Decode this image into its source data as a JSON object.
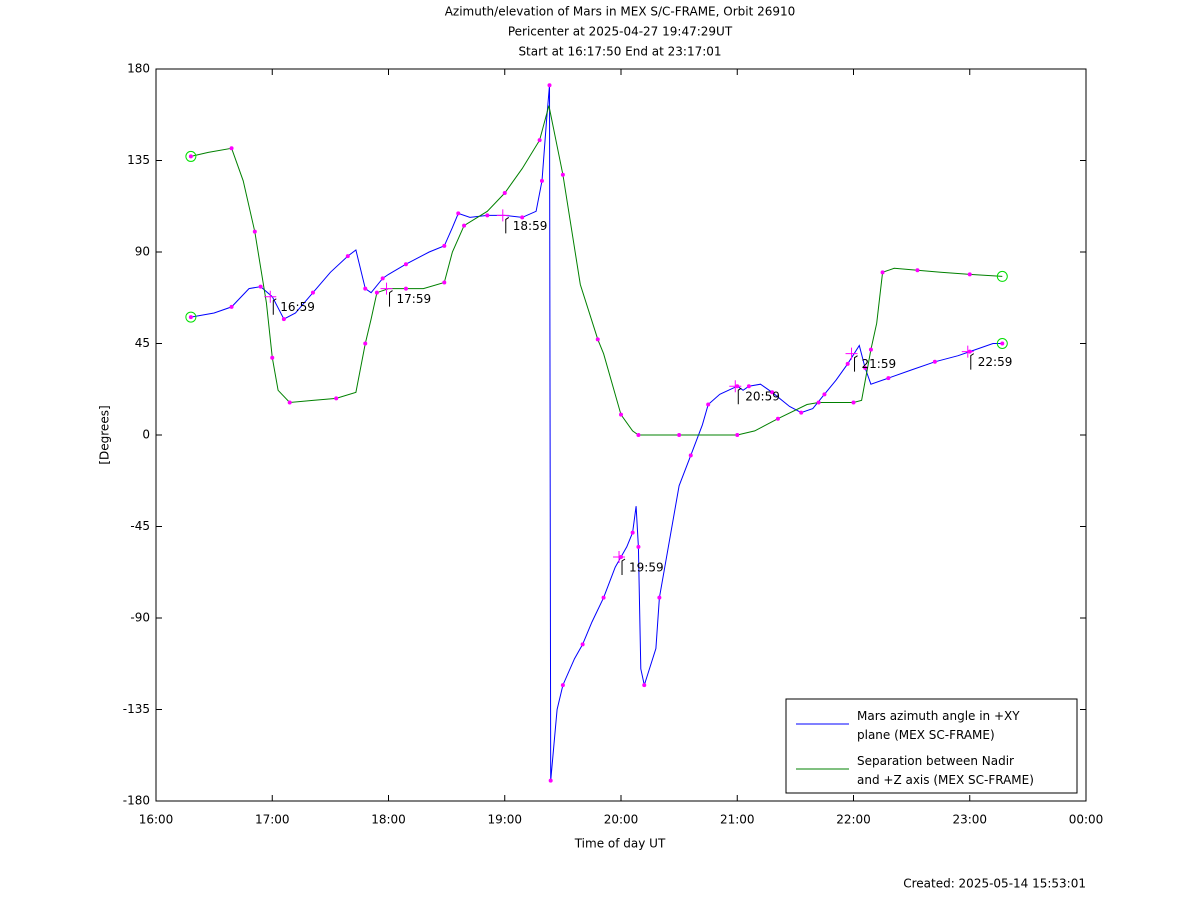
{
  "chart_data": {
    "type": "line",
    "title": [
      "Azimuth/elevation of Mars in MEX S/C-FRAME,  Orbit 26910",
      "Pericenter at 2025-04-27 19:47:29UT",
      "Start at 16:17:50 End at 23:17:01"
    ],
    "xlabel": "Time of day UT",
    "ylabel": "[Degrees]",
    "footer": "Created: 2025-05-14 15:53:01",
    "xlim": [
      16,
      24
    ],
    "xticks": [
      {
        "value": 16,
        "label": "16:00"
      },
      {
        "value": 17,
        "label": "17:00"
      },
      {
        "value": 18,
        "label": "18:00"
      },
      {
        "value": 19,
        "label": "19:00"
      },
      {
        "value": 20,
        "label": "20:00"
      },
      {
        "value": 21,
        "label": "21:00"
      },
      {
        "value": 22,
        "label": "22:00"
      },
      {
        "value": 23,
        "label": "23:00"
      },
      {
        "value": 24,
        "label": "00:00"
      }
    ],
    "ylim": [
      -180,
      180
    ],
    "yticks": [
      180,
      135,
      90,
      45,
      0,
      -45,
      -90,
      -135,
      -180
    ],
    "legend": "lower right",
    "marker_color": "#ff00ff",
    "series": [
      {
        "name": "Mars azimuth angle in +XY\nplane (MEX SC-FRAME)",
        "color": "#0000ff",
        "x": [
          16.3,
          16.5,
          16.65,
          16.8,
          16.9,
          17.0,
          17.1,
          17.2,
          17.35,
          17.5,
          17.65,
          17.72,
          17.8,
          17.85,
          17.95,
          18.0,
          18.15,
          18.35,
          18.48,
          18.55,
          18.6,
          18.7,
          18.85,
          19.0,
          19.15,
          19.27,
          19.32,
          19.36,
          19.385,
          19.39,
          19.395,
          19.45,
          19.5,
          19.6,
          19.67,
          19.75,
          19.85,
          19.95,
          20.0,
          20.05,
          20.1,
          20.13,
          20.15,
          20.17,
          20.2,
          20.3,
          20.33,
          20.5,
          20.6,
          20.7,
          20.75,
          20.85,
          21.0,
          21.05,
          21.1,
          21.2,
          21.3,
          21.45,
          21.55,
          21.65,
          21.75,
          21.85,
          21.95,
          22.05,
          22.1,
          22.15,
          22.3,
          22.5,
          22.7,
          22.9,
          23.0,
          23.2,
          23.28
        ],
        "values": [
          58,
          60,
          63,
          72,
          73,
          68,
          57,
          60,
          70,
          80,
          88,
          91,
          72,
          70,
          77,
          79,
          84,
          90,
          93,
          102,
          109,
          107,
          108,
          108,
          107,
          110,
          125,
          155,
          172,
          0,
          -170,
          -135,
          -123,
          -110,
          -103,
          -92,
          -80,
          -65,
          -60,
          -55,
          -48,
          -35,
          -55,
          -115,
          -123,
          -105,
          -80,
          -25,
          -10,
          5,
          15,
          20,
          24,
          22,
          24,
          25,
          21,
          14,
          11,
          13,
          20,
          27,
          35,
          44,
          33,
          25,
          28,
          32,
          36,
          39,
          41,
          45,
          45
        ]
      },
      {
        "name": "Separation between Nadir\nand +Z axis (MEX SC-FRAME)",
        "color": "#008000",
        "x": [
          16.3,
          16.45,
          16.65,
          16.75,
          16.85,
          16.95,
          17.0,
          17.05,
          17.15,
          17.35,
          17.55,
          17.72,
          17.8,
          17.85,
          17.9,
          18.0,
          18.15,
          18.3,
          18.48,
          18.55,
          18.65,
          18.85,
          19.0,
          19.15,
          19.3,
          19.38,
          19.5,
          19.65,
          19.8,
          19.85,
          20.0,
          20.1,
          20.15,
          20.3,
          20.5,
          20.7,
          21.0,
          21.15,
          21.35,
          21.6,
          21.7,
          21.85,
          22.0,
          22.07,
          22.15,
          22.2,
          22.25,
          22.35,
          22.55,
          22.75,
          23.0,
          23.28
        ],
        "values": [
          137,
          139,
          141,
          125,
          100,
          65,
          38,
          22,
          16,
          17,
          18,
          21,
          45,
          57,
          70,
          72,
          72,
          72,
          75,
          90,
          103,
          110,
          119,
          131,
          145,
          162,
          128,
          74,
          47,
          40,
          10,
          2,
          0,
          0,
          0,
          0,
          0,
          2,
          8,
          15,
          16,
          16,
          16,
          17,
          42,
          55,
          80,
          82,
          81,
          80,
          79,
          78
        ]
      }
    ],
    "annotations": [
      {
        "text": "16:59",
        "x": 16.983,
        "y": 68
      },
      {
        "text": "17:59",
        "x": 17.983,
        "y": 72
      },
      {
        "text": "18:59",
        "x": 18.983,
        "y": 108
      },
      {
        "text": "19:59",
        "x": 19.983,
        "y": -60
      },
      {
        "text": "20:59",
        "x": 20.983,
        "y": 24
      },
      {
        "text": "21:59",
        "x": 21.983,
        "y": 40
      },
      {
        "text": "22:59",
        "x": 22.983,
        "y": 41
      }
    ]
  }
}
